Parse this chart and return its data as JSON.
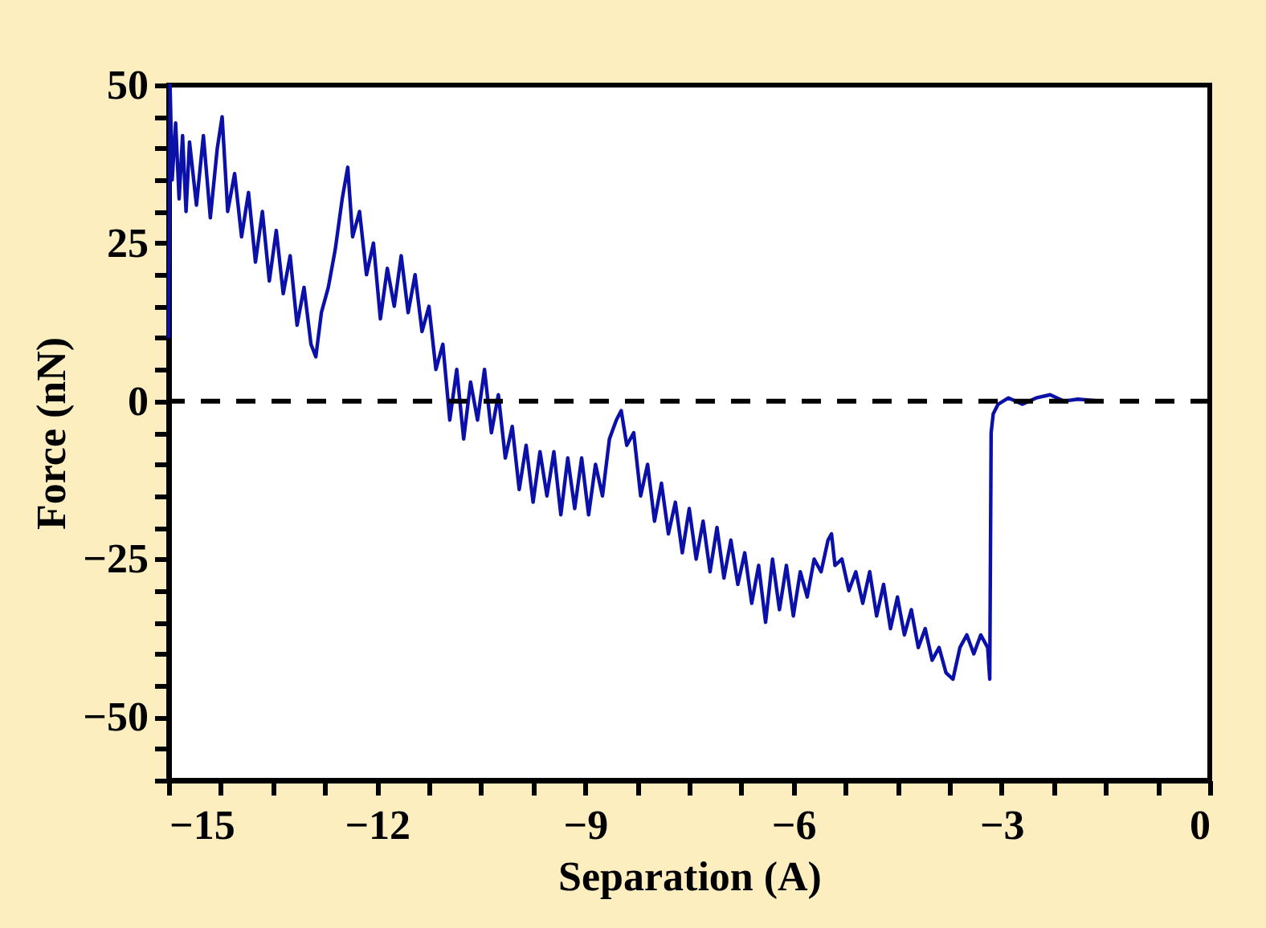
{
  "chart_data": {
    "type": "line",
    "xlabel": "Separation (A)",
    "ylabel": "Force (nN)",
    "xlim": [
      -15,
      0
    ],
    "ylim": [
      -60,
      50
    ],
    "xticks": [
      -15,
      {
        "value": -14.25,
        "label": null
      },
      {
        "value": -13.5,
        "label": null
      },
      {
        "value": -12.75,
        "label": null
      },
      -12,
      {
        "value": -11.25,
        "label": null
      },
      {
        "value": -10.5,
        "label": null
      },
      {
        "value": -9.75,
        "label": null
      },
      -9,
      {
        "value": -8.25,
        "label": null
      },
      {
        "value": -7.5,
        "label": null
      },
      {
        "value": -6.75,
        "label": null
      },
      -6,
      {
        "value": -5.25,
        "label": null
      },
      {
        "value": -4.5,
        "label": null
      },
      {
        "value": -3.75,
        "label": null
      },
      -3,
      {
        "value": -2.25,
        "label": null
      },
      {
        "value": -1.5,
        "label": null
      },
      {
        "value": -0.75,
        "label": null
      },
      0
    ],
    "yticks": [
      {
        "value": -60,
        "label": null
      },
      {
        "value": -55,
        "label": null
      },
      -50,
      {
        "value": -45,
        "label": null
      },
      {
        "value": -40,
        "label": null
      },
      {
        "value": -35,
        "label": null
      },
      {
        "value": -30,
        "label": null
      },
      -25,
      {
        "value": -20,
        "label": null
      },
      {
        "value": -15,
        "label": null
      },
      {
        "value": -10,
        "label": null
      },
      {
        "value": -5,
        "label": null
      },
      0,
      {
        "value": 5,
        "label": null
      },
      {
        "value": 10,
        "label": null
      },
      {
        "value": 15,
        "label": null
      },
      {
        "value": 20,
        "label": null
      },
      25,
      {
        "value": 30,
        "label": null
      },
      {
        "value": 35,
        "label": null
      },
      {
        "value": 40,
        "label": null
      },
      {
        "value": 45,
        "label": null
      },
      50
    ],
    "grid": false,
    "marker": "none",
    "line_style": "solid",
    "ref_lines": [
      {
        "axis": "y",
        "value": 0,
        "color": "#000000",
        "line_style": "dashed"
      }
    ],
    "series": [
      {
        "color": "#0a10a8",
        "x": [
          -15.0,
          -14.98,
          -14.95,
          -14.9,
          -14.85,
          -14.8,
          -14.75,
          -14.7,
          -14.6,
          -14.5,
          -14.4,
          -14.3,
          -14.23,
          -14.15,
          -14.05,
          -13.95,
          -13.85,
          -13.75,
          -13.65,
          -13.55,
          -13.45,
          -13.35,
          -13.25,
          -13.15,
          -13.05,
          -12.95,
          -12.88,
          -12.8,
          -12.7,
          -12.6,
          -12.5,
          -12.42,
          -12.35,
          -12.25,
          -12.15,
          -12.05,
          -11.95,
          -11.85,
          -11.75,
          -11.65,
          -11.55,
          -11.45,
          -11.35,
          -11.25,
          -11.15,
          -11.05,
          -10.95,
          -10.85,
          -10.75,
          -10.65,
          -10.55,
          -10.45,
          -10.35,
          -10.25,
          -10.15,
          -10.05,
          -9.95,
          -9.85,
          -9.75,
          -9.65,
          -9.55,
          -9.45,
          -9.35,
          -9.25,
          -9.15,
          -9.05,
          -8.95,
          -8.85,
          -8.75,
          -8.65,
          -8.55,
          -8.48,
          -8.4,
          -8.3,
          -8.2,
          -8.1,
          -8.0,
          -7.9,
          -7.8,
          -7.7,
          -7.6,
          -7.5,
          -7.4,
          -7.3,
          -7.2,
          -7.1,
          -7.0,
          -6.9,
          -6.8,
          -6.7,
          -6.6,
          -6.5,
          -6.4,
          -6.3,
          -6.2,
          -6.1,
          -6.0,
          -5.9,
          -5.8,
          -5.7,
          -5.6,
          -5.5,
          -5.45,
          -5.4,
          -5.3,
          -5.2,
          -5.1,
          -5.0,
          -4.9,
          -4.8,
          -4.7,
          -4.6,
          -4.5,
          -4.4,
          -4.3,
          -4.2,
          -4.1,
          -4.0,
          -3.9,
          -3.8,
          -3.7,
          -3.6,
          -3.5,
          -3.4,
          -3.3,
          -3.2,
          -3.17,
          -3.15,
          -3.12,
          -3.05,
          -2.9,
          -2.7,
          -2.5,
          -2.3,
          -2.1,
          -1.9,
          -1.57
        ],
        "values": [
          10,
          50,
          35,
          44,
          32,
          42,
          30,
          41,
          31,
          42,
          29,
          40,
          45,
          30,
          36,
          26,
          33,
          22,
          30,
          19,
          27,
          17,
          23,
          12,
          18,
          9,
          7,
          14,
          18,
          24,
          32,
          37,
          26,
          30,
          20,
          25,
          13,
          21,
          15,
          23,
          14,
          20,
          11,
          15,
          5,
          9,
          -3,
          5,
          -6,
          3,
          -3,
          5,
          -5,
          1,
          -9,
          -4,
          -14,
          -7,
          -16,
          -8,
          -15,
          -8,
          -18,
          -9,
          -17,
          -9,
          -18,
          -10,
          -15,
          -6,
          -3,
          -1.5,
          -7,
          -5,
          -15,
          -10,
          -19,
          -13,
          -21,
          -16,
          -24,
          -17,
          -25,
          -19,
          -27,
          -20,
          -28,
          -22,
          -29,
          -24,
          -32,
          -26,
          -35,
          -25,
          -33,
          -26,
          -34,
          -27,
          -31,
          -25,
          -27,
          -22,
          -21,
          -26,
          -25,
          -30,
          -27,
          -32,
          -27,
          -34,
          -29,
          -36,
          -31,
          -37,
          -33,
          -39,
          -36,
          -41,
          -39,
          -43,
          -44,
          -39,
          -37,
          -40,
          -37,
          -39,
          -44,
          -5,
          -2,
          -0.5,
          0.5,
          -0.5,
          0.5,
          1,
          0,
          0.3,
          0
        ]
      }
    ]
  }
}
